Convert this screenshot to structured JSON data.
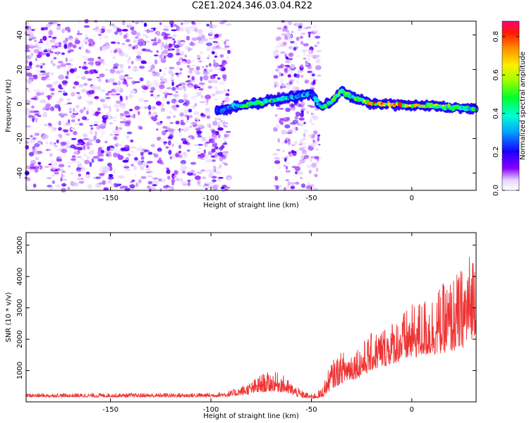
{
  "title": "C2E1.2024.346.03.04.R22",
  "chart_data": [
    {
      "type": "heatmap",
      "title": "C2E1.2024.346.03.04.R22",
      "xlabel": "Height of straight line (km)",
      "ylabel": "Frequency (Hz)",
      "xlim": [
        -192,
        32
      ],
      "ylim": [
        -50,
        48
      ],
      "xticks": [
        "-150",
        "-100",
        "-50",
        "0"
      ],
      "yticks": [
        "-40",
        "-20",
        "0",
        "20",
        "40"
      ],
      "colorbar": {
        "label": "Normalized spectral amplitude",
        "range": [
          0.0,
          0.88
        ],
        "ticks": [
          "0.0",
          "0.2",
          "0.4",
          "0.6",
          "0.8"
        ],
        "colormap": "rainbow"
      },
      "noise_regions_x": [
        [
          -192,
          -91
        ],
        [
          -68,
          -46
        ]
      ],
      "ridge": {
        "x": [
          -97,
          -90,
          -80,
          -70,
          -60,
          -50,
          -45,
          -40,
          -35,
          -30,
          -25,
          -20,
          -10,
          0,
          10,
          20,
          32
        ],
        "freq": [
          -4,
          -2,
          0,
          2,
          4,
          6,
          -2,
          1,
          8,
          4,
          2,
          0,
          0,
          -1,
          -1,
          -2,
          -3
        ],
        "peak_amplitude": [
          0.25,
          0.35,
          0.55,
          0.5,
          0.4,
          0.35,
          0.45,
          0.55,
          0.7,
          0.55,
          0.6,
          0.8,
          0.8,
          0.75,
          0.6,
          0.55,
          0.5
        ]
      }
    },
    {
      "type": "line",
      "xlabel": "Height of straight line (km)",
      "ylabel": "SNR (10 * v/v)",
      "xlim": [
        -192,
        32
      ],
      "ylim": [
        0,
        5400
      ],
      "xticks": [
        "-150",
        "-100",
        "-50",
        "0"
      ],
      "yticks": [
        "1000",
        "2000",
        "3000",
        "4000",
        "5000"
      ],
      "color": "#ee3333",
      "envelope": {
        "x": [
          -192,
          -100,
          -90,
          -80,
          -75,
          -70,
          -65,
          -60,
          -55,
          -50,
          -45,
          -40,
          -35,
          -30,
          -25,
          -20,
          -10,
          0,
          10,
          20,
          25,
          30,
          32
        ],
        "base": [
          150,
          150,
          170,
          250,
          300,
          330,
          320,
          220,
          130,
          100,
          120,
          400,
          600,
          700,
          800,
          1000,
          1200,
          1400,
          1500,
          1600,
          1700,
          2000,
          2200
        ],
        "amplitude": [
          120,
          140,
          200,
          400,
          600,
          650,
          600,
          400,
          250,
          150,
          300,
          900,
          1000,
          1000,
          1100,
          1200,
          1400,
          1700,
          2000,
          2400,
          2600,
          3000,
          3200
        ]
      }
    }
  ]
}
